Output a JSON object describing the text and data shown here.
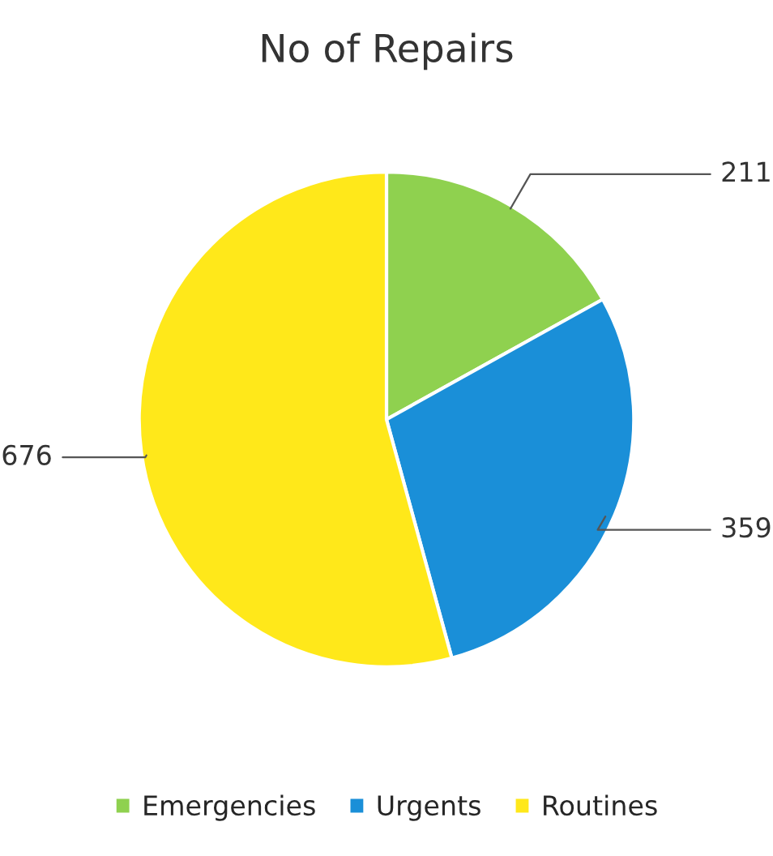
{
  "chart_data": {
    "type": "pie",
    "title": "No of Repairs",
    "categories": [
      "Emergencies",
      "Urgents",
      "Routines"
    ],
    "values": [
      211,
      359,
      676
    ],
    "colors": [
      "#8fd14f",
      "#1a8fd8",
      "#ffe81a"
    ],
    "data_labels": true,
    "legend": "bottom"
  }
}
